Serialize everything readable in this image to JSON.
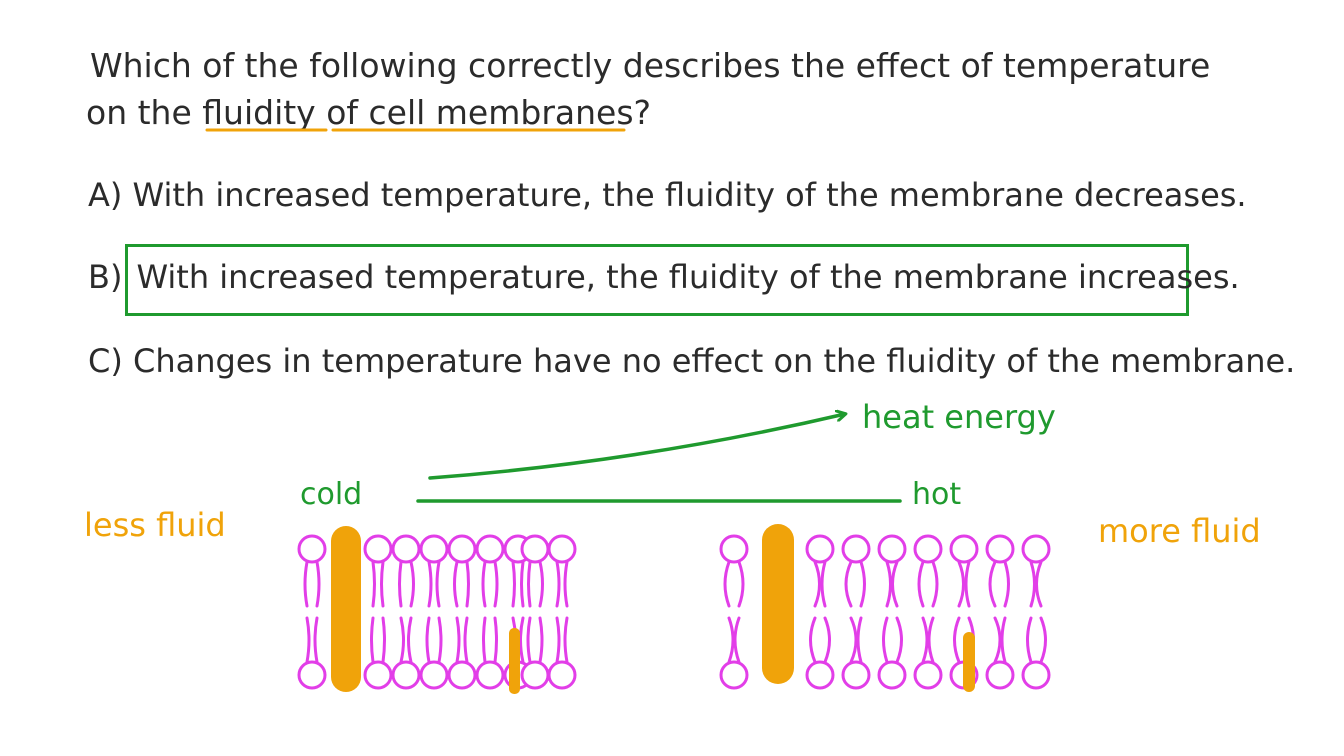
{
  "question": {
    "line1": "Which of the following correctly describes the effect of temperature",
    "line2_prefix": "on the ",
    "line2_highlight1": "fluidity",
    "line2_highlight2": "of cell membranes",
    "line2_suffix": "?"
  },
  "options": [
    {
      "letter": "A)",
      "text": "With increased temperature, the fluidity of the membrane decreases."
    },
    {
      "letter": "B)",
      "text": "With increased temperature, the fluidity of the membrane increases."
    },
    {
      "letter": "C)",
      "text": "Changes in temperature have no effect on the fluidity of the membrane."
    }
  ],
  "selected_option": "B)",
  "diagram": {
    "heat_label": "heat energy",
    "cold_label": "cold",
    "hot_label": "hot",
    "less_fluid_label": "less fluid",
    "more_fluid_label": "more fluid"
  },
  "colors": {
    "text": "#2b2b2b",
    "green": "#1f9a2e",
    "orange": "#f0a30a",
    "magenta": "#e23ee8"
  }
}
